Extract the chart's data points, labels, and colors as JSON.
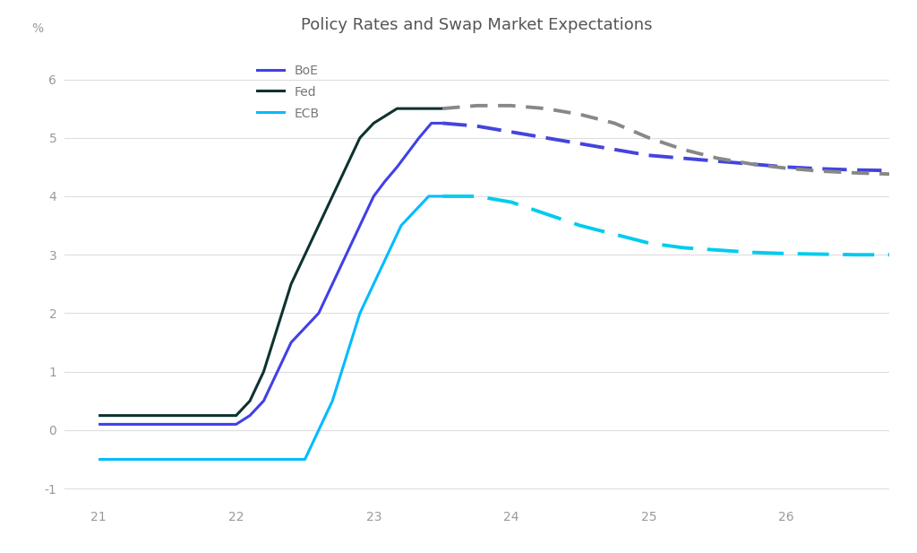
{
  "title": "Policy Rates and Swap Market Expectations",
  "ylabel": "%",
  "xlim": [
    20.75,
    26.75
  ],
  "ylim": [
    -1.25,
    6.6
  ],
  "yticks": [
    -1,
    0,
    1,
    2,
    3,
    4,
    5,
    6
  ],
  "xticks": [
    21,
    22,
    23,
    24,
    25,
    26
  ],
  "background_color": "#ffffff",
  "grid_color": "#dddddd",
  "boe_color": "#4040e8",
  "fed_color": "#0d3330",
  "ecb_color": "#00bbff",
  "boe_dashed_color": "#4444dd",
  "fed_dashed_color": "#888888",
  "ecb_dashed_color": "#00ccee",
  "boe_solid_x": [
    21.0,
    21.5,
    22.0,
    22.1,
    22.2,
    22.3,
    22.4,
    22.5,
    22.6,
    22.7,
    22.8,
    22.9,
    23.0,
    23.08,
    23.17,
    23.25,
    23.33,
    23.42,
    23.5
  ],
  "boe_solid_y": [
    0.1,
    0.1,
    0.1,
    0.25,
    0.5,
    1.0,
    1.5,
    1.75,
    2.0,
    2.5,
    3.0,
    3.5,
    4.0,
    4.25,
    4.5,
    4.75,
    5.0,
    5.25,
    5.25
  ],
  "fed_solid_x": [
    21.0,
    21.5,
    22.0,
    22.1,
    22.2,
    22.3,
    22.4,
    22.5,
    22.6,
    22.7,
    22.8,
    22.9,
    23.0,
    23.17,
    23.33,
    23.5
  ],
  "fed_solid_y": [
    0.25,
    0.25,
    0.25,
    0.5,
    1.0,
    1.75,
    2.5,
    3.0,
    3.5,
    4.0,
    4.5,
    5.0,
    5.25,
    5.5,
    5.5,
    5.5
  ],
  "ecb_solid_x": [
    21.0,
    21.5,
    22.0,
    22.5,
    22.6,
    22.7,
    22.8,
    22.9,
    23.0,
    23.1,
    23.2,
    23.3,
    23.4,
    23.5
  ],
  "ecb_solid_y": [
    -0.5,
    -0.5,
    -0.5,
    -0.5,
    0.0,
    0.5,
    1.25,
    2.0,
    2.5,
    3.0,
    3.5,
    3.75,
    4.0,
    4.0
  ],
  "boe_dashed_x": [
    23.5,
    23.75,
    24.0,
    24.25,
    24.5,
    24.75,
    25.0,
    25.25,
    25.5,
    25.75,
    26.0,
    26.25,
    26.5,
    26.75
  ],
  "boe_dashed_y": [
    5.25,
    5.2,
    5.1,
    5.0,
    4.9,
    4.8,
    4.7,
    4.65,
    4.6,
    4.55,
    4.5,
    4.47,
    4.45,
    4.44
  ],
  "fed_dashed_x": [
    23.5,
    23.75,
    24.0,
    24.25,
    24.5,
    24.75,
    25.0,
    25.25,
    25.5,
    25.75,
    26.0,
    26.25,
    26.5,
    26.75
  ],
  "fed_dashed_y": [
    5.5,
    5.55,
    5.55,
    5.5,
    5.4,
    5.25,
    5.0,
    4.8,
    4.65,
    4.55,
    4.48,
    4.43,
    4.4,
    4.38
  ],
  "ecb_dashed_x": [
    23.5,
    23.75,
    24.0,
    24.25,
    24.5,
    24.75,
    25.0,
    25.25,
    25.5,
    25.75,
    26.0,
    26.25,
    26.5,
    26.75
  ],
  "ecb_dashed_y": [
    4.0,
    4.0,
    3.9,
    3.7,
    3.5,
    3.35,
    3.2,
    3.12,
    3.08,
    3.04,
    3.02,
    3.01,
    3.0,
    3.0
  ],
  "legend_labels": [
    "BoE",
    "Fed",
    "ECB"
  ],
  "legend_colors": [
    "#4040e8",
    "#0d3330",
    "#00bbff"
  ],
  "title_fontsize": 13,
  "label_fontsize": 10,
  "tick_fontsize": 10,
  "legend_fontsize": 10
}
